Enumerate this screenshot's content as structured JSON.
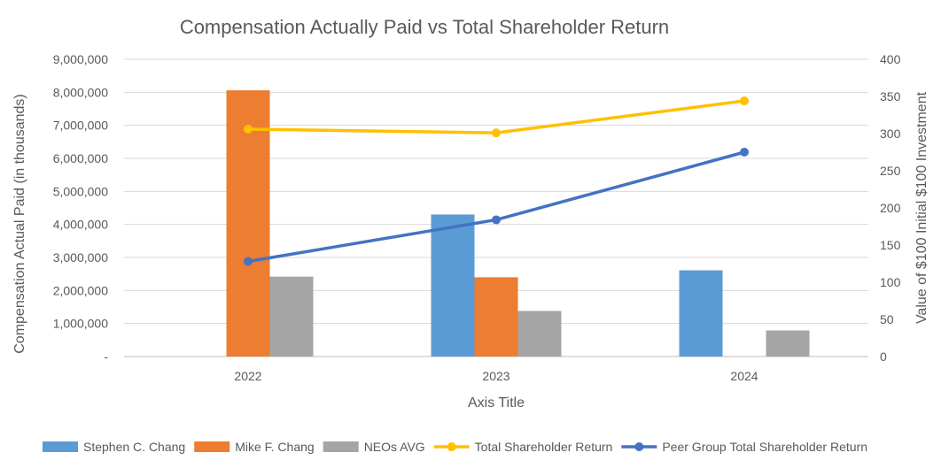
{
  "chart_data": {
    "type": "bar+line",
    "title": "Compensation Actually Paid vs Total Shareholder Return",
    "xlabel": "Axis Title",
    "ylabel": "Compensation Actual Paid (in thousands)",
    "y2label": "Value of $100 Initial $100 Investment",
    "categories": [
      "2022",
      "2023",
      "2024"
    ],
    "ylim": [
      0,
      9000000
    ],
    "y_ticks": [
      "-",
      "1,000,000",
      "2,000,000",
      "3,000,000",
      "4,000,000",
      "5,000,000",
      "6,000,000",
      "7,000,000",
      "8,000,000",
      "9,000,000"
    ],
    "y2lim": [
      0,
      400
    ],
    "y2_ticks": [
      "0",
      "50",
      "100",
      "150",
      "200",
      "250",
      "300",
      "350",
      "400"
    ],
    "grid": true,
    "legend_position": "bottom",
    "bar_series": [
      {
        "name": "Stephen C. Chang",
        "color": "#5B9BD5",
        "values": [
          null,
          4300000,
          2610000
        ]
      },
      {
        "name": "Mike F. Chang",
        "color": "#ED7D31",
        "values": [
          8060000,
          2400000,
          null
        ]
      },
      {
        "name": "NEOs AVG",
        "color": "#A5A5A5",
        "values": [
          2420000,
          1380000,
          790000
        ]
      }
    ],
    "line_series": [
      {
        "name": "Total Shareholder Return",
        "color": "#FFC000",
        "axis": "right",
        "values": [
          306,
          301,
          344
        ]
      },
      {
        "name": "Peer Group Total Shareholder Return",
        "color": "#4472C4",
        "axis": "right",
        "values": [
          128,
          184,
          275
        ]
      }
    ]
  }
}
